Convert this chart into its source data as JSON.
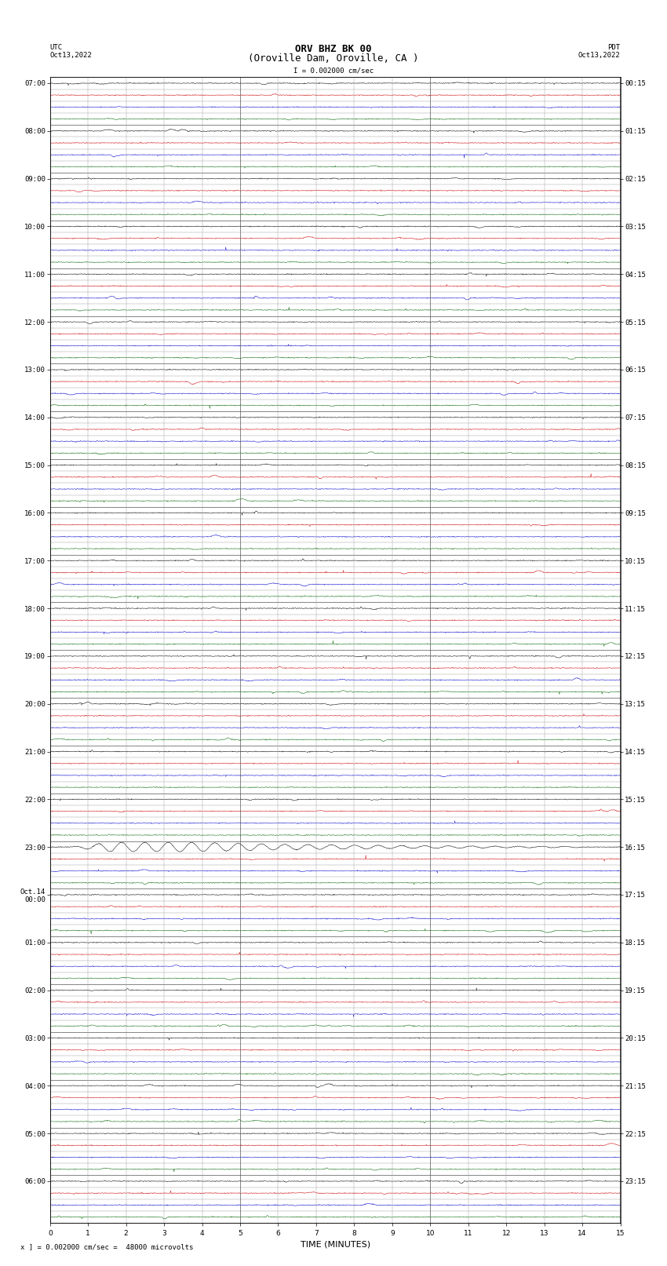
{
  "title_line1": "ORV BHZ BK 00",
  "title_line2": "(Oroville Dam, Oroville, CA )",
  "scale_label": "I = 0.002000 cm/sec",
  "utc_label": "UTC",
  "utc_date": "Oct13,2022",
  "pdt_label": "PDT",
  "pdt_date": "Oct13,2022",
  "xlabel": "TIME (MINUTES)",
  "footer": "x ] = 0.002000 cm/sec =  48000 microvolts",
  "left_times": [
    "07:00",
    "",
    "",
    "",
    "08:00",
    "",
    "",
    "",
    "09:00",
    "",
    "",
    "",
    "10:00",
    "",
    "",
    "",
    "11:00",
    "",
    "",
    "",
    "12:00",
    "",
    "",
    "",
    "13:00",
    "",
    "",
    "",
    "14:00",
    "",
    "",
    "",
    "15:00",
    "",
    "",
    "",
    "16:00",
    "",
    "",
    "",
    "17:00",
    "",
    "",
    "",
    "18:00",
    "",
    "",
    "",
    "19:00",
    "",
    "",
    "",
    "20:00",
    "",
    "",
    "",
    "21:00",
    "",
    "",
    "",
    "22:00",
    "",
    "",
    "",
    "23:00",
    "",
    "",
    "",
    "Oct.14\n00:00",
    "",
    "",
    "",
    "01:00",
    "",
    "",
    "",
    "02:00",
    "",
    "",
    "",
    "03:00",
    "",
    "",
    "",
    "04:00",
    "",
    "",
    "",
    "05:00",
    "",
    "",
    "",
    "06:00",
    "",
    "",
    ""
  ],
  "right_times": [
    "00:15",
    "",
    "",
    "",
    "01:15",
    "",
    "",
    "",
    "02:15",
    "",
    "",
    "",
    "03:15",
    "",
    "",
    "",
    "04:15",
    "",
    "",
    "",
    "05:15",
    "",
    "",
    "",
    "06:15",
    "",
    "",
    "",
    "07:15",
    "",
    "",
    "",
    "08:15",
    "",
    "",
    "",
    "09:15",
    "",
    "",
    "",
    "10:15",
    "",
    "",
    "",
    "11:15",
    "",
    "",
    "",
    "12:15",
    "",
    "",
    "",
    "13:15",
    "",
    "",
    "",
    "14:15",
    "",
    "",
    "",
    "15:15",
    "",
    "",
    "",
    "16:15",
    "",
    "",
    "",
    "17:15",
    "",
    "",
    "",
    "18:15",
    "",
    "",
    "",
    "19:15",
    "",
    "",
    "",
    "20:15",
    "",
    "",
    "",
    "21:15",
    "",
    "",
    "",
    "22:15",
    "",
    "",
    "",
    "23:15",
    "",
    "",
    ""
  ],
  "num_rows": 96,
  "x_min": 0,
  "x_max": 15,
  "background_color": "#ffffff",
  "colors": [
    "#000000",
    "#cc0000",
    "#0000cc",
    "#006600"
  ],
  "grid_color": "#999999",
  "special_row": 64,
  "title_fontsize": 9,
  "label_fontsize": 8,
  "tick_fontsize": 6.5
}
